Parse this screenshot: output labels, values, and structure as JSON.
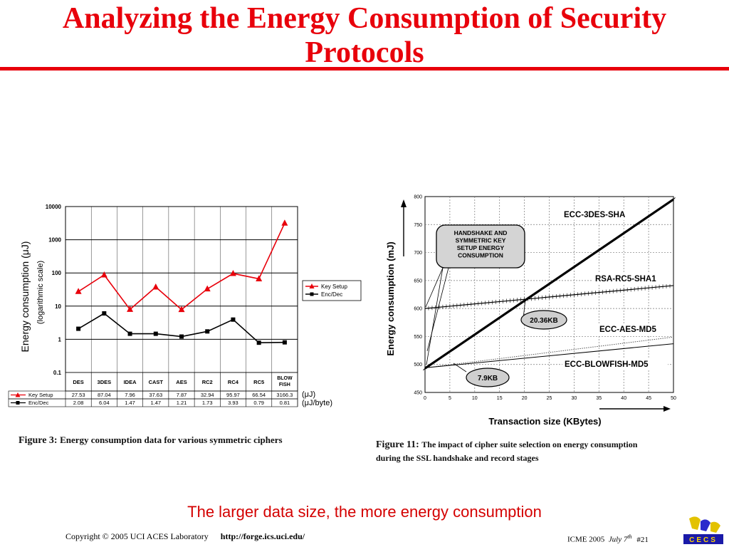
{
  "slide": {
    "title": "Analyzing the Energy Consumption of Security Protocols",
    "conclusion": "The larger data size, the more energy consumption",
    "footer": {
      "copyright": "Copyright © 2005  UCI ACES Laboratory",
      "url": "http://forge.ics.uci.edu/",
      "event": "ICME 2005",
      "date": "July 7",
      "date_suffix": "th",
      "slide_number": "#21"
    },
    "logo_text": "CECS",
    "title_color": "#e8000b"
  },
  "figure3": {
    "caption_label": "Figure 3:",
    "caption_text": "Energy consumption data for various symmetric ciphers",
    "table_units": [
      "(μJ)",
      "(μJ/byte)"
    ]
  },
  "figure11": {
    "caption_label": "Figure 11:",
    "caption_line1": "The impact of cipher suite selection on energy consumption",
    "caption_line2": "during the SSL handshake and record stages",
    "callout": "HANDSHAKE AND SYMMETRIC KEY SETUP ENERGY CONSUMPTION",
    "annotations": [
      "20.36KB",
      "7.9KB"
    ]
  },
  "chart_data": [
    {
      "type": "line",
      "categories": [
        "DES",
        "3DES",
        "IDEA",
        "CAST",
        "AES",
        "RC2",
        "RC4",
        "RC5",
        "BLOW FISH"
      ],
      "ylabel": "Energy consumption (μJ) (logarithmic scale)",
      "yscale": "log",
      "ylim": [
        0.1,
        10000
      ],
      "yticks": [
        "10000",
        "1000",
        "100",
        "10",
        "1",
        "0.1"
      ],
      "grid": true,
      "legend": "right",
      "series": [
        {
          "name": "Key Setup",
          "values": [
            27.53,
            87.04,
            7.96,
            37.63,
            7.87,
            32.94,
            95.97,
            66.54,
            3166.3
          ],
          "labels": [
            "27.53",
            "87.04",
            "7.96",
            "37.63",
            "7.87",
            "32.94",
            "95.97",
            "66.54",
            "3166.3"
          ],
          "color": "#e8000b"
        },
        {
          "name": "Enc/Dec",
          "values": [
            2.08,
            6.04,
            1.47,
            1.47,
            1.21,
            1.73,
            3.93,
            0.79,
            0.81
          ],
          "labels": [
            "2.08",
            "6.04",
            "1.47",
            "1.47",
            "1.21",
            "1.73",
            "3.93",
            "0.79",
            "0.81"
          ],
          "color": "#000000"
        }
      ]
    },
    {
      "type": "line",
      "xlabel": "Transaction size (KBytes)",
      "ylabel": "Energy consumption (mJ)",
      "xlim": [
        0,
        50
      ],
      "ylim": [
        450,
        800
      ],
      "xticks": [
        0,
        5,
        10,
        15,
        20,
        25,
        30,
        35,
        40,
        45,
        50
      ],
      "yticks": [
        450,
        500,
        550,
        600,
        650,
        700,
        750,
        800
      ],
      "grid": true,
      "series": [
        {
          "name": "ECC-3DES-SHA",
          "x": [
            0,
            50
          ],
          "y": [
            493,
            795
          ],
          "color": "#000000"
        },
        {
          "name": "RSA-RC5-SHA1",
          "x": [
            0,
            50
          ],
          "y": [
            600,
            641
          ],
          "color": "#000000"
        },
        {
          "name": "ECC-AES-MD5",
          "x": [
            0,
            50
          ],
          "y": [
            494,
            549
          ],
          "color": "#555555"
        },
        {
          "name": "ECC-BLOWFISH-MD5",
          "x": [
            0,
            50
          ],
          "y": [
            494,
            537
          ],
          "color": "#000000"
        }
      ]
    }
  ]
}
